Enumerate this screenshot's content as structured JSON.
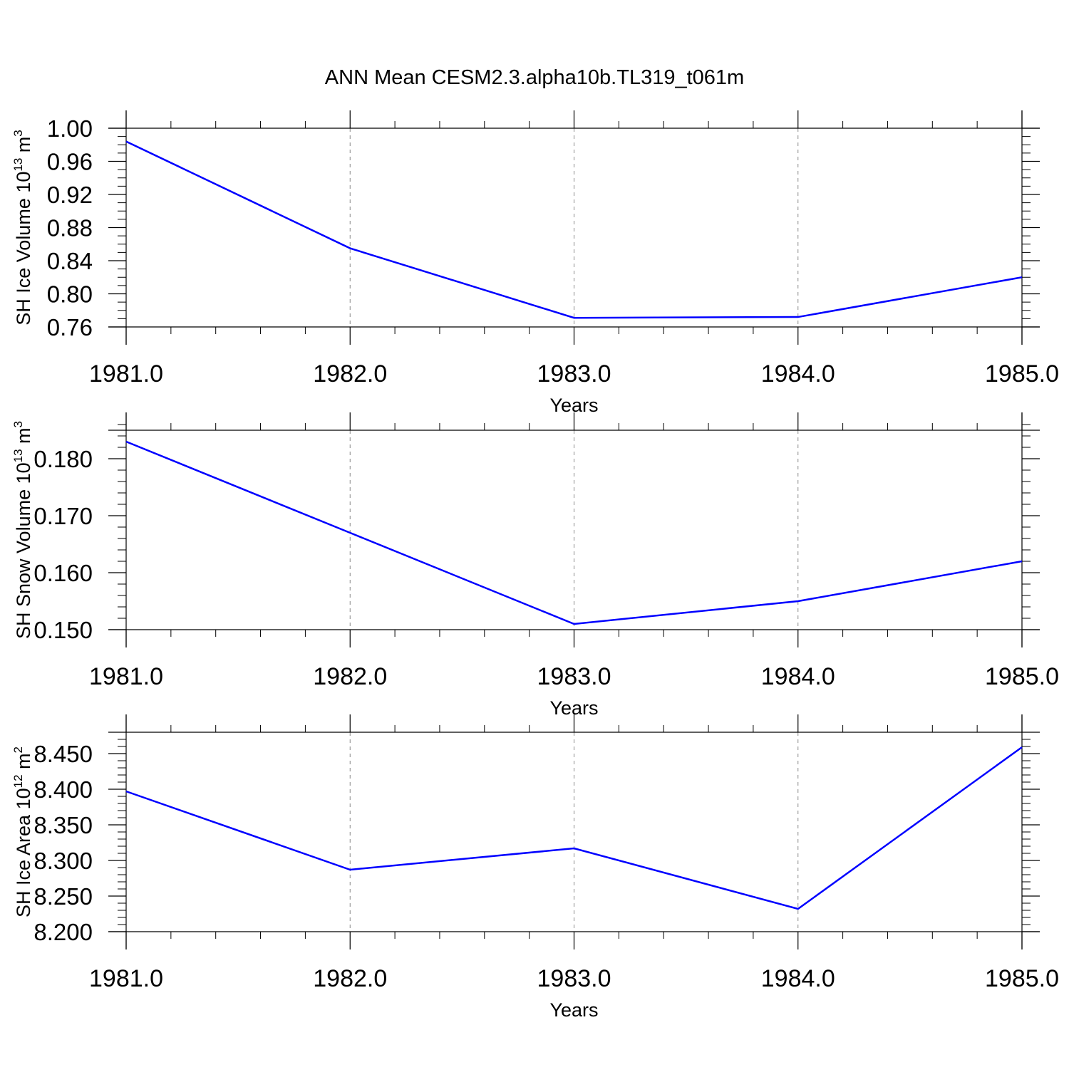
{
  "title": "ANN Mean CESM2.3.alpha10b.TL319_t061m",
  "colors": {
    "line": "#0000ff",
    "axis": "#000000",
    "grid": "#888888",
    "background": "#ffffff"
  },
  "chart_data": [
    {
      "type": "line",
      "title": "",
      "xlabel": "Years",
      "ylabel": "SH Ice Volume 10",
      "ylabel_exp": "13",
      "ylabel_unit": " m",
      "ylabel_unit_exp": "3",
      "x": [
        1981,
        1982,
        1983,
        1984,
        1985
      ],
      "x_tick_labels": [
        "1981.0",
        "1982.0",
        "1983.0",
        "1984.0",
        "1985.0"
      ],
      "y_tick_values": [
        0.76,
        0.8,
        0.84,
        0.88,
        0.92,
        0.96,
        1.0
      ],
      "y_tick_labels": [
        "0.76",
        "0.80",
        "0.84",
        "0.88",
        "0.92",
        "0.96",
        "1.00"
      ],
      "y_minor_step": 0.01,
      "xlim": [
        1981,
        1985
      ],
      "ylim": [
        0.76,
        1.0
      ],
      "grid": "vertical dashed at major x ticks",
      "series": [
        {
          "values": [
            0.984,
            0.855,
            0.771,
            0.772,
            0.82
          ]
        }
      ]
    },
    {
      "type": "line",
      "title": "",
      "xlabel": "Years",
      "ylabel": "SH Snow Volume 10",
      "ylabel_exp": "13",
      "ylabel_unit": " m",
      "ylabel_unit_exp": "3",
      "x": [
        1981,
        1982,
        1983,
        1984,
        1985
      ],
      "x_tick_labels": [
        "1981.0",
        "1982.0",
        "1983.0",
        "1984.0",
        "1985.0"
      ],
      "y_tick_values": [
        0.15,
        0.16,
        0.17,
        0.18
      ],
      "y_tick_labels": [
        "0.150",
        "0.160",
        "0.170",
        "0.180"
      ],
      "y_minor_step": 0.002,
      "xlim": [
        1981,
        1985
      ],
      "ylim": [
        0.15,
        0.185
      ],
      "grid": "vertical dashed at major x ticks",
      "series": [
        {
          "values": [
            0.183,
            0.167,
            0.151,
            0.155,
            0.162
          ]
        }
      ]
    },
    {
      "type": "line",
      "title": "",
      "xlabel": "Years",
      "ylabel": "SH Ice Area 10",
      "ylabel_exp": "12",
      "ylabel_unit": " m",
      "ylabel_unit_exp": "2",
      "x": [
        1981,
        1982,
        1983,
        1984,
        1985
      ],
      "x_tick_labels": [
        "1981.0",
        "1982.0",
        "1983.0",
        "1984.0",
        "1985.0"
      ],
      "y_tick_values": [
        8.2,
        8.25,
        8.3,
        8.35,
        8.4,
        8.45
      ],
      "y_tick_labels": [
        "8.200",
        "8.250",
        "8.300",
        "8.350",
        "8.400",
        "8.450"
      ],
      "y_minor_step": 0.01,
      "xlim": [
        1981,
        1985
      ],
      "ylim": [
        8.2,
        8.48
      ],
      "grid": "vertical dashed at major x ticks",
      "series": [
        {
          "values": [
            8.397,
            8.287,
            8.317,
            8.232,
            8.459
          ]
        }
      ]
    }
  ]
}
